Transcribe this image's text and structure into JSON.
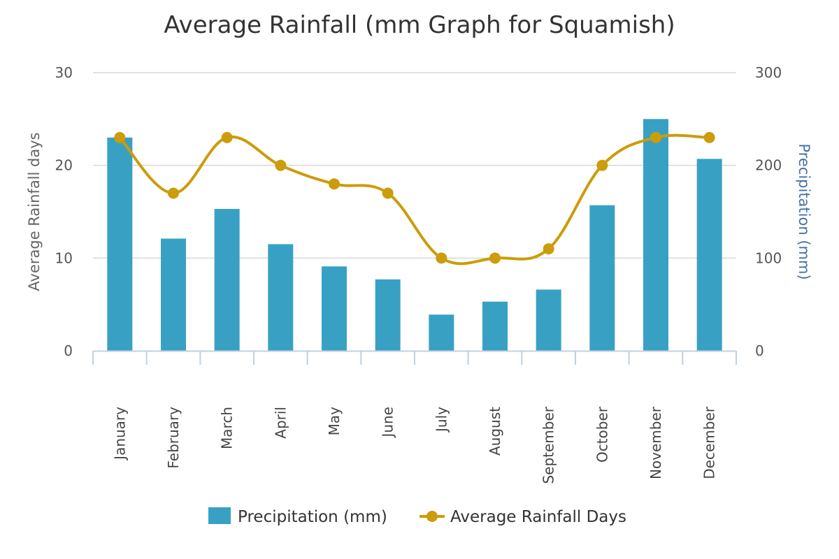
{
  "chart_data": {
    "type": "bar+line",
    "title": "Average Rainfall (mm Graph for Squamish)",
    "categories": [
      "January",
      "February",
      "March",
      "April",
      "May",
      "June",
      "July",
      "August",
      "September",
      "October",
      "November",
      "December"
    ],
    "series": [
      {
        "name": "Precipitation (mm)",
        "type": "bar",
        "axis": "right",
        "values": [
          230,
          121,
          153,
          115,
          91,
          77,
          39,
          53,
          66,
          157,
          250,
          207
        ]
      },
      {
        "name": "Average Rainfall Days",
        "type": "line",
        "axis": "left",
        "values": [
          23,
          17,
          23,
          20,
          18,
          17,
          10,
          10,
          11,
          20,
          23,
          23
        ]
      }
    ],
    "y_left": {
      "label": "Average Rainfall days",
      "range": [
        0,
        30
      ],
      "ticks": [
        "0",
        "10",
        "20",
        "30"
      ]
    },
    "y_right": {
      "label": "Precipitation (mm)",
      "range": [
        0,
        300
      ],
      "ticks": [
        "0",
        "100",
        "200",
        "300"
      ]
    },
    "grid": true,
    "legend_position": "bottom-center",
    "colors": {
      "bar": "#38a1c3",
      "line": "#cc9c0a",
      "right_axis_title": "#4572a7"
    }
  }
}
